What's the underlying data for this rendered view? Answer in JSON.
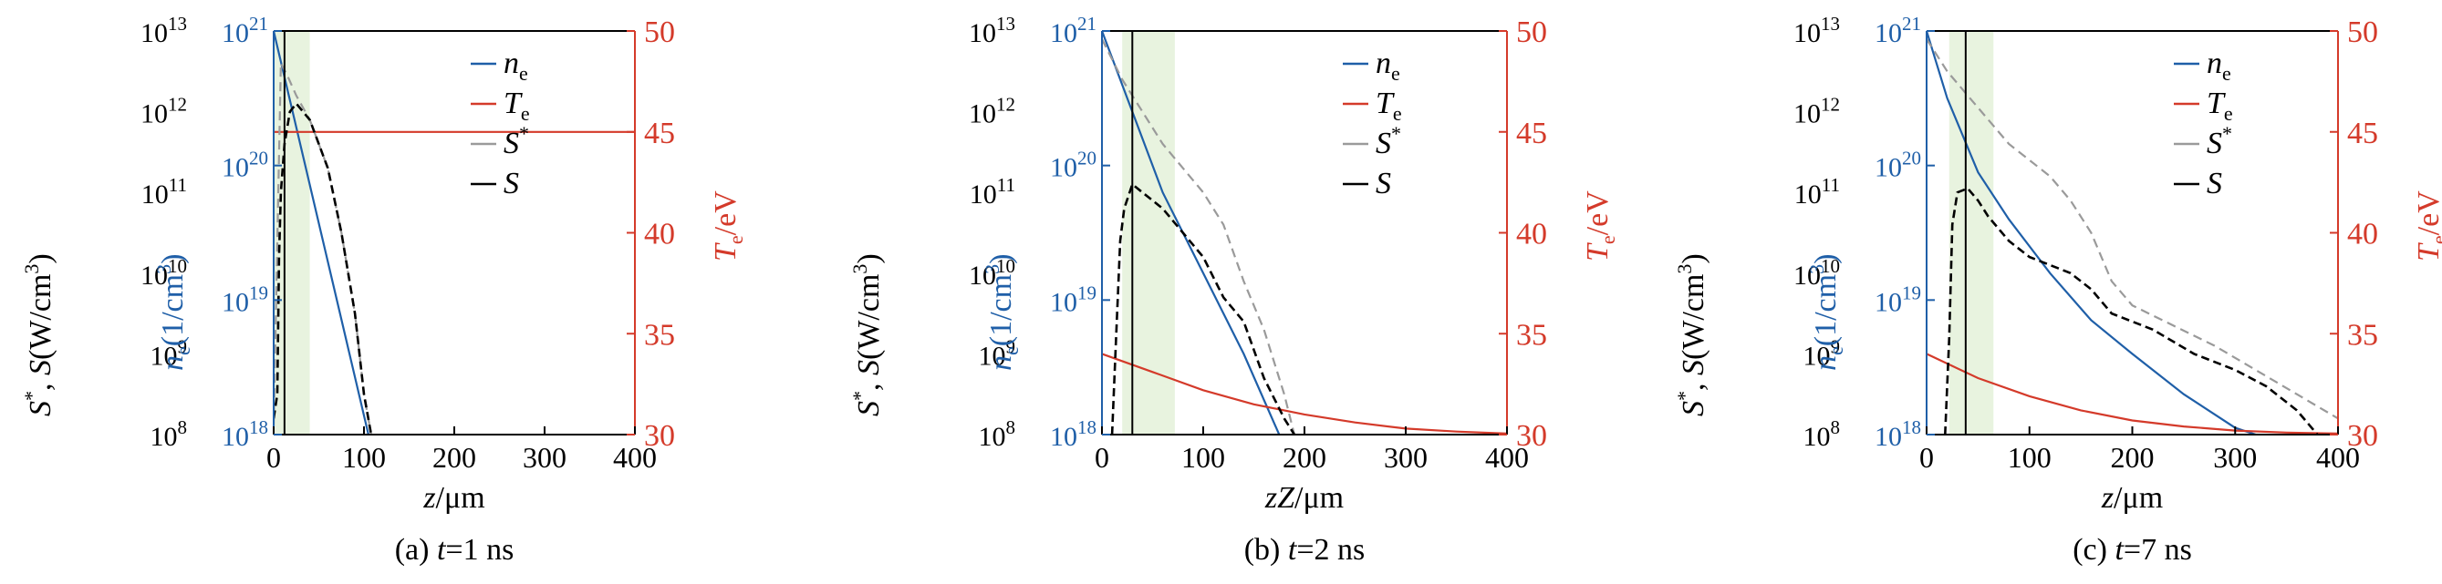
{
  "colors": {
    "ne": "#1f5fa8",
    "Te": "#d43a2a",
    "Sstar": "#9a9a9a",
    "S": "#000000",
    "shade": "#e8f3df",
    "axis": "#000000"
  },
  "legend": {
    "ne": "n",
    "ne_sub": "e",
    "Te": "T",
    "Te_sub": "e",
    "Sstar": "S",
    "Sstar_sup": "*",
    "S": "S"
  },
  "axes_text": {
    "left_label_parts": [
      "S",
      "*",
      ", ",
      "S",
      "(W/cm",
      "3",
      ")"
    ],
    "ne_label_parts": [
      "n",
      "e",
      "(1/cm",
      "3",
      ")"
    ],
    "te_label_parts": [
      "T",
      "e",
      "/eV"
    ]
  },
  "chart_data": [
    {
      "type": "line",
      "caption": "(a) t=1 ns",
      "caption_parts": [
        "(a) ",
        "t",
        "=1 ns"
      ],
      "xlabel_parts": [
        "z",
        "/μm"
      ],
      "xlim": [
        0,
        400
      ],
      "x_ticks": [
        "0",
        "100",
        "200",
        "300",
        "400"
      ],
      "s_ylim_log": [
        8,
        13
      ],
      "s_ticks": [
        "10^8",
        "10^9",
        "10^10",
        "10^11",
        "10^12",
        "10^13"
      ],
      "ne_ylim_log": [
        18,
        21
      ],
      "ne_ticks": [
        "10^18",
        "10^19",
        "10^20",
        "10^21"
      ],
      "te_ylim": [
        30,
        50
      ],
      "te_ticks": [
        "30",
        "35",
        "40",
        "45",
        "50"
      ],
      "shaded_region": [
        0,
        40
      ],
      "vertical_line_x": 12,
      "series": [
        {
          "key": "ne",
          "axis": "ne",
          "x": [
            0,
            105
          ],
          "y_log10": [
            21,
            18
          ]
        },
        {
          "key": "Te",
          "axis": "te",
          "x": [
            0,
            400
          ],
          "y": [
            45,
            45
          ]
        },
        {
          "key": "Sstar",
          "axis": "s",
          "x": [
            0,
            8,
            15,
            25,
            40,
            60,
            75,
            90,
            100,
            108
          ],
          "y_log10": [
            8.1,
            12.6,
            12.45,
            12.2,
            11.9,
            11.3,
            10.5,
            9.5,
            8.5,
            8
          ]
        },
        {
          "key": "S",
          "axis": "s",
          "x": [
            0,
            4,
            6,
            8,
            12,
            18,
            25,
            40,
            60,
            75,
            90,
            100,
            108
          ],
          "y_log10": [
            8.2,
            8.5,
            10.2,
            11.0,
            11.6,
            12.0,
            12.1,
            11.9,
            11.3,
            10.5,
            9.5,
            8.5,
            8
          ]
        }
      ]
    },
    {
      "type": "line",
      "caption": "(b) t=2 ns",
      "caption_parts": [
        "(b) ",
        "t",
        "=2 ns"
      ],
      "xlabel_parts": [
        "zZ",
        "/μm"
      ],
      "xlim": [
        0,
        400
      ],
      "x_ticks": [
        "0",
        "100",
        "200",
        "300",
        "400"
      ],
      "s_ylim_log": [
        8,
        13
      ],
      "s_ticks": [
        "10^8",
        "10^9",
        "10^10",
        "10^11",
        "10^12",
        "10^13"
      ],
      "ne_ylim_log": [
        18,
        21
      ],
      "ne_ticks": [
        "10^18",
        "10^19",
        "10^20",
        "10^21"
      ],
      "te_ylim": [
        30,
        50
      ],
      "te_ticks": [
        "30",
        "35",
        "40",
        "45",
        "50"
      ],
      "shaded_region": [
        20,
        72
      ],
      "vertical_line_x": 30,
      "series": [
        {
          "key": "ne",
          "axis": "ne",
          "x": [
            0,
            10,
            30,
            60,
            100,
            140,
            175
          ],
          "y_log10": [
            21,
            20.8,
            20.4,
            19.8,
            19.2,
            18.6,
            18
          ]
        },
        {
          "key": "Te",
          "axis": "te",
          "x": [
            0,
            50,
            100,
            150,
            200,
            250,
            300,
            350,
            400
          ],
          "y": [
            34,
            33.1,
            32.2,
            31.5,
            31,
            30.6,
            30.3,
            30.15,
            30.05
          ]
        },
        {
          "key": "Sstar",
          "axis": "s",
          "x": [
            0,
            20,
            40,
            60,
            80,
            100,
            120,
            140,
            160,
            180,
            190
          ],
          "y_log10": [
            12.9,
            12.4,
            12.0,
            11.6,
            11.3,
            11.0,
            10.6,
            9.9,
            9.3,
            8.5,
            8
          ]
        },
        {
          "key": "S",
          "axis": "s",
          "x": [
            10,
            14,
            18,
            22,
            30,
            40,
            60,
            80,
            100,
            120,
            140,
            160,
            180,
            190
          ],
          "y_log10": [
            8,
            9.2,
            10.4,
            10.8,
            11.1,
            11.0,
            10.8,
            10.5,
            10.2,
            9.7,
            9.4,
            8.7,
            8.2,
            8
          ]
        }
      ]
    },
    {
      "type": "line",
      "caption": "(c) t=7 ns",
      "caption_parts": [
        "(c) ",
        "t",
        "=7 ns"
      ],
      "xlabel_parts": [
        "z",
        "/μm"
      ],
      "xlim": [
        0,
        400
      ],
      "x_ticks": [
        "0",
        "100",
        "200",
        "300",
        "400"
      ],
      "s_ylim_log": [
        8,
        13
      ],
      "s_ticks": [
        "10^8",
        "10^9",
        "10^10",
        "10^11",
        "10^12",
        "10^13"
      ],
      "ne_ylim_log": [
        18,
        21
      ],
      "ne_ticks": [
        "10^18",
        "10^19",
        "10^20",
        "10^21"
      ],
      "te_ylim": [
        30,
        50
      ],
      "te_ticks": [
        "30",
        "35",
        "40",
        "45",
        "50"
      ],
      "shaded_region": [
        22,
        65
      ],
      "vertical_line_x": 38,
      "series": [
        {
          "key": "ne",
          "axis": "ne",
          "x": [
            0,
            20,
            50,
            80,
            120,
            160,
            200,
            250,
            300,
            320
          ],
          "y_log10": [
            21,
            20.5,
            19.95,
            19.6,
            19.2,
            18.85,
            18.6,
            18.3,
            18.05,
            18
          ]
        },
        {
          "key": "Te",
          "axis": "te",
          "x": [
            0,
            50,
            100,
            150,
            200,
            250,
            300,
            350,
            400
          ],
          "y": [
            34,
            32.8,
            31.9,
            31.2,
            30.7,
            30.4,
            30.2,
            30.1,
            30.05
          ]
        },
        {
          "key": "Sstar",
          "axis": "s",
          "x": [
            0,
            20,
            40,
            60,
            80,
            100,
            120,
            140,
            160,
            180,
            200,
            240,
            280,
            320,
            360,
            400
          ],
          "y_log10": [
            12.9,
            12.5,
            12.2,
            11.9,
            11.6,
            11.4,
            11.2,
            10.9,
            10.5,
            9.9,
            9.6,
            9.35,
            9.1,
            8.8,
            8.5,
            8.2
          ]
        },
        {
          "key": "S",
          "axis": "s",
          "x": [
            18,
            22,
            25,
            30,
            40,
            50,
            60,
            80,
            100,
            140,
            160,
            180,
            220,
            260,
            300,
            330,
            360,
            380
          ],
          "y_log10": [
            8,
            9.2,
            10.6,
            11.0,
            11.05,
            10.9,
            10.7,
            10.4,
            10.2,
            10.0,
            9.8,
            9.5,
            9.3,
            9.0,
            8.8,
            8.6,
            8.3,
            8
          ]
        }
      ]
    }
  ]
}
